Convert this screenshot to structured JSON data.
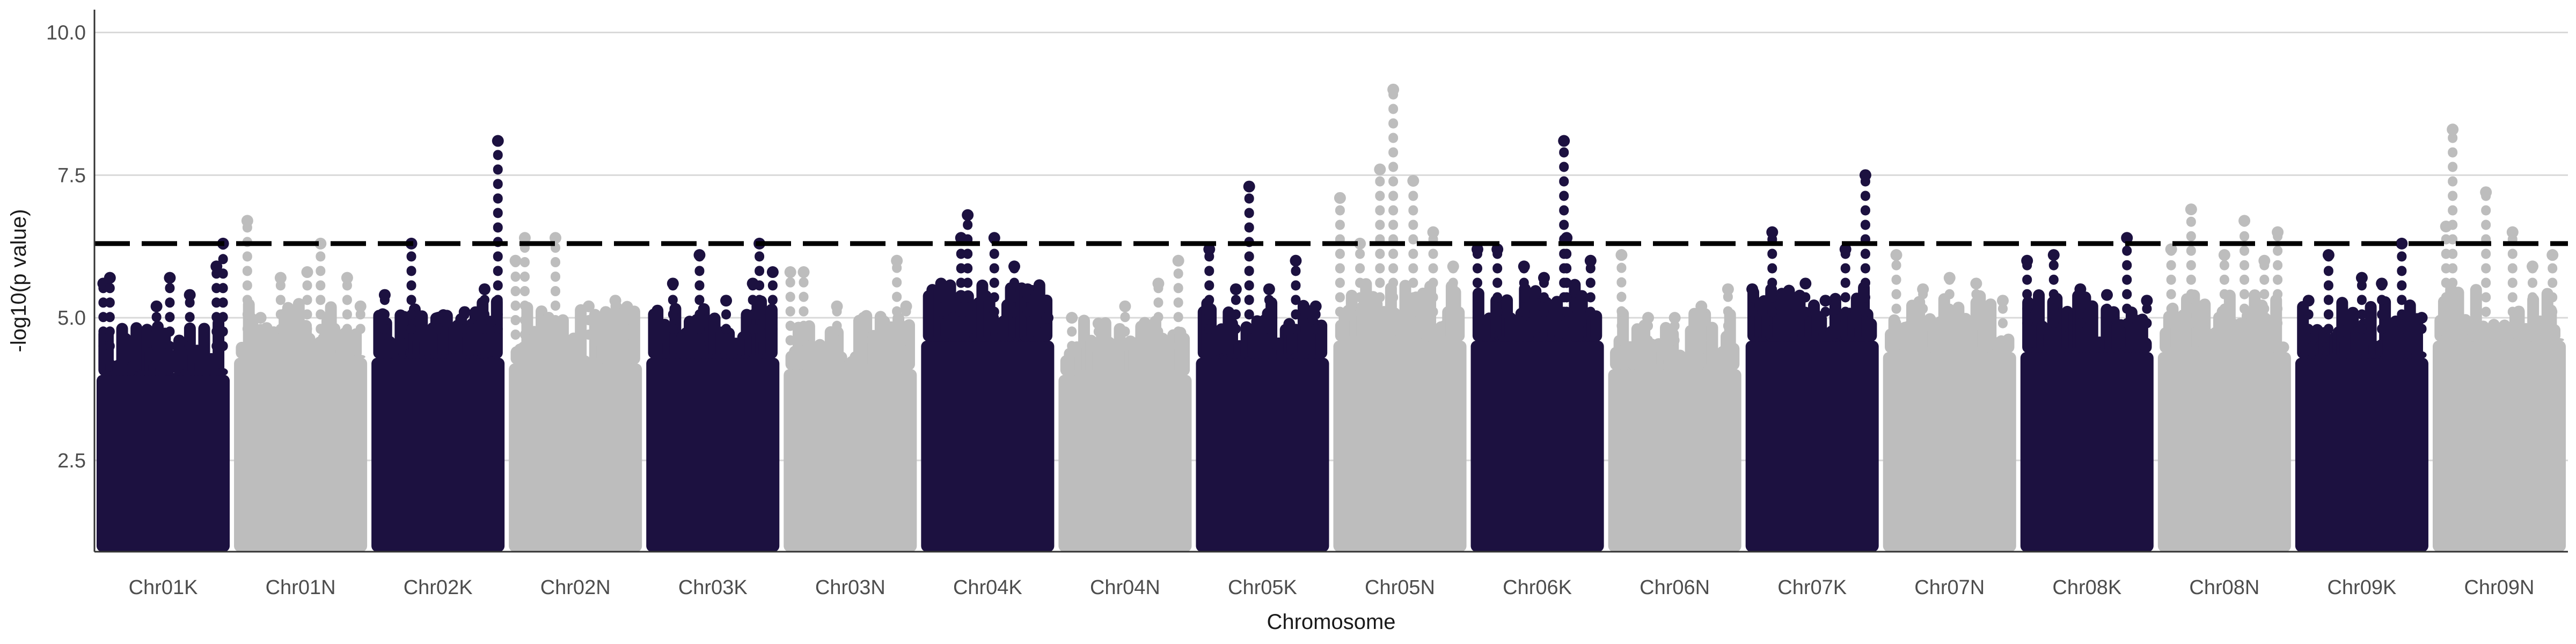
{
  "chart_data": {
    "type": "scatter",
    "title": "",
    "xlabel": "Chromosome",
    "ylabel": "-log10(p value)",
    "ylim": [
      0.9,
      10.4
    ],
    "y_ticks": [
      2.5,
      5.0,
      7.5,
      10.0
    ],
    "y_tick_labels": [
      "2.5",
      "5.0",
      "7.5",
      "10.0"
    ],
    "threshold": 6.3,
    "threshold_style": "dashed",
    "grid": "horizontal-major",
    "legend": "none",
    "colors": {
      "dark": "#1c1140",
      "light": "#bdbdbd",
      "threshold": "#000000",
      "grid": "#d9d9d9"
    },
    "categories": [
      "Chr01K",
      "Chr01N",
      "Chr02K",
      "Chr02N",
      "Chr03K",
      "Chr03N",
      "Chr04K",
      "Chr04N",
      "Chr05K",
      "Chr05N",
      "Chr06K",
      "Chr06N",
      "Chr07K",
      "Chr07N",
      "Chr08K",
      "Chr08N",
      "Chr09K",
      "Chr09N"
    ],
    "series": [
      {
        "chromosome": "Chr01K",
        "color": "dark",
        "body_top": 4.0,
        "peaks": [
          [
            0.05,
            5.6
          ],
          [
            0.1,
            5.7
          ],
          [
            0.45,
            5.2
          ],
          [
            0.55,
            5.7
          ],
          [
            0.7,
            5.4
          ],
          [
            0.9,
            5.9
          ],
          [
            0.95,
            6.3
          ]
        ]
      },
      {
        "chromosome": "Chr01N",
        "color": "light",
        "body_top": 4.3,
        "peaks": [
          [
            0.1,
            6.7
          ],
          [
            0.2,
            5.0
          ],
          [
            0.35,
            5.7
          ],
          [
            0.55,
            5.8
          ],
          [
            0.65,
            6.3
          ],
          [
            0.85,
            5.7
          ],
          [
            0.95,
            5.2
          ]
        ]
      },
      {
        "chromosome": "Chr02K",
        "color": "dark",
        "body_top": 4.3,
        "peaks": [
          [
            0.1,
            5.4
          ],
          [
            0.3,
            6.3
          ],
          [
            0.5,
            5.0
          ],
          [
            0.7,
            5.1
          ],
          [
            0.85,
            5.5
          ],
          [
            0.95,
            8.1
          ]
        ]
      },
      {
        "chromosome": "Chr02N",
        "color": "light",
        "body_top": 4.2,
        "peaks": [
          [
            0.05,
            6.0
          ],
          [
            0.12,
            6.4
          ],
          [
            0.35,
            6.4
          ],
          [
            0.6,
            5.2
          ],
          [
            0.8,
            5.3
          ],
          [
            0.92,
            5.0
          ]
        ]
      },
      {
        "chromosome": "Chr03K",
        "color": "dark",
        "body_top": 4.3,
        "peaks": [
          [
            0.2,
            5.6
          ],
          [
            0.4,
            6.1
          ],
          [
            0.6,
            5.3
          ],
          [
            0.8,
            5.6
          ],
          [
            0.85,
            6.3
          ],
          [
            0.95,
            5.8
          ]
        ]
      },
      {
        "chromosome": "Chr03N",
        "color": "light",
        "body_top": 4.1,
        "peaks": [
          [
            0.05,
            5.8
          ],
          [
            0.15,
            5.8
          ],
          [
            0.4,
            5.2
          ],
          [
            0.6,
            5.0
          ],
          [
            0.85,
            6.0
          ],
          [
            0.92,
            5.2
          ]
        ]
      },
      {
        "chromosome": "Chr04K",
        "color": "dark",
        "body_top": 4.6,
        "peaks": [
          [
            0.15,
            5.6
          ],
          [
            0.3,
            6.4
          ],
          [
            0.35,
            6.8
          ],
          [
            0.55,
            6.4
          ],
          [
            0.7,
            5.9
          ],
          [
            0.8,
            5.5
          ],
          [
            0.95,
            5.0
          ]
        ]
      },
      {
        "chromosome": "Chr04N",
        "color": "light",
        "body_top": 4.0,
        "peaks": [
          [
            0.1,
            5.0
          ],
          [
            0.3,
            4.9
          ],
          [
            0.5,
            5.2
          ],
          [
            0.75,
            5.6
          ],
          [
            0.9,
            6.0
          ]
        ]
      },
      {
        "chromosome": "Chr05K",
        "color": "dark",
        "body_top": 4.3,
        "peaks": [
          [
            0.1,
            6.2
          ],
          [
            0.3,
            5.5
          ],
          [
            0.4,
            7.3
          ],
          [
            0.55,
            5.5
          ],
          [
            0.75,
            6.0
          ],
          [
            0.9,
            5.2
          ]
        ]
      },
      {
        "chromosome": "Chr05N",
        "color": "light",
        "body_top": 4.6,
        "peaks": [
          [
            0.05,
            7.1
          ],
          [
            0.2,
            6.3
          ],
          [
            0.35,
            7.6
          ],
          [
            0.45,
            9.0
          ],
          [
            0.6,
            7.4
          ],
          [
            0.75,
            6.5
          ],
          [
            0.9,
            5.9
          ]
        ]
      },
      {
        "chromosome": "Chr06K",
        "color": "dark",
        "body_top": 4.6,
        "peaks": [
          [
            0.05,
            6.2
          ],
          [
            0.2,
            6.2
          ],
          [
            0.4,
            5.9
          ],
          [
            0.55,
            5.7
          ],
          [
            0.7,
            8.1
          ],
          [
            0.72,
            6.4
          ],
          [
            0.9,
            6.0
          ]
        ]
      },
      {
        "chromosome": "Chr06N",
        "color": "light",
        "body_top": 4.1,
        "peaks": [
          [
            0.1,
            6.1
          ],
          [
            0.3,
            5.0
          ],
          [
            0.5,
            5.0
          ],
          [
            0.7,
            5.2
          ],
          [
            0.9,
            5.5
          ]
        ]
      },
      {
        "chromosome": "Chr07K",
        "color": "dark",
        "body_top": 4.6,
        "peaks": [
          [
            0.05,
            5.5
          ],
          [
            0.2,
            6.5
          ],
          [
            0.45,
            5.6
          ],
          [
            0.6,
            5.3
          ],
          [
            0.75,
            6.2
          ],
          [
            0.9,
            7.5
          ]
        ]
      },
      {
        "chromosome": "Chr07N",
        "color": "light",
        "body_top": 4.4,
        "peaks": [
          [
            0.1,
            6.1
          ],
          [
            0.3,
            5.5
          ],
          [
            0.5,
            5.7
          ],
          [
            0.7,
            5.6
          ],
          [
            0.9,
            5.3
          ]
        ]
      },
      {
        "chromosome": "Chr08K",
        "color": "dark",
        "body_top": 4.4,
        "peaks": [
          [
            0.05,
            6.0
          ],
          [
            0.25,
            6.1
          ],
          [
            0.45,
            5.5
          ],
          [
            0.65,
            5.4
          ],
          [
            0.8,
            6.4
          ],
          [
            0.95,
            5.3
          ]
        ]
      },
      {
        "chromosome": "Chr08N",
        "color": "light",
        "body_top": 4.4,
        "peaks": [
          [
            0.1,
            6.2
          ],
          [
            0.25,
            6.9
          ],
          [
            0.5,
            6.1
          ],
          [
            0.65,
            6.7
          ],
          [
            0.8,
            6.0
          ],
          [
            0.9,
            6.5
          ]
        ]
      },
      {
        "chromosome": "Chr09K",
        "color": "dark",
        "body_top": 4.3,
        "peaks": [
          [
            0.1,
            5.3
          ],
          [
            0.25,
            6.1
          ],
          [
            0.5,
            5.7
          ],
          [
            0.65,
            5.6
          ],
          [
            0.8,
            6.3
          ],
          [
            0.95,
            5.0
          ]
        ]
      },
      {
        "chromosome": "Chr09N",
        "color": "light",
        "body_top": 4.6,
        "peaks": [
          [
            0.1,
            6.6
          ],
          [
            0.15,
            8.3
          ],
          [
            0.4,
            7.2
          ],
          [
            0.6,
            6.5
          ],
          [
            0.75,
            5.9
          ],
          [
            0.9,
            6.1
          ]
        ]
      }
    ]
  }
}
